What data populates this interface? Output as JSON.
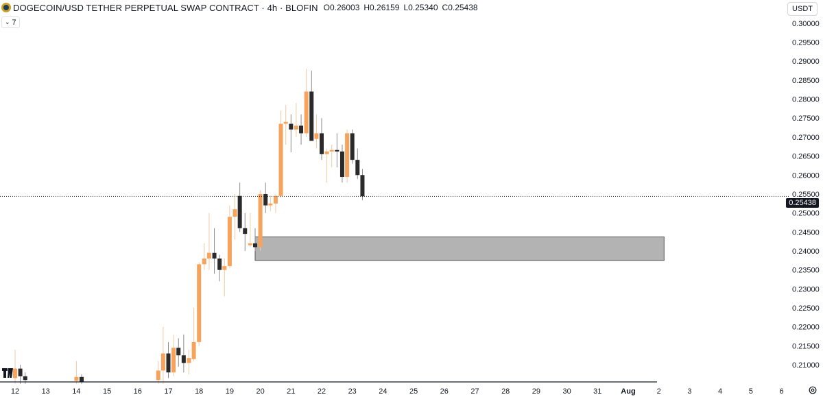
{
  "header": {
    "symbol_title": "DOGECOIN/USD TETHER PERPETUAL SWAP CONTRACT · 4h · BLOFIN",
    "ohlc": [
      {
        "label": "O",
        "value": "0.26003"
      },
      {
        "label": "H",
        "value": "0.26159"
      },
      {
        "label": "L",
        "value": "0.25340"
      },
      {
        "label": "C",
        "value": "0.25438"
      }
    ],
    "indicator_count": "7",
    "currency": "USDT"
  },
  "colors": {
    "up": "#f7a35c",
    "down": "#2a2a2a",
    "zone_fill": "#b3b3b3",
    "zone_stroke": "#555555",
    "axis_text": "#131722"
  },
  "current_price_label": "0.25438",
  "chart_data": {
    "type": "candlestick",
    "ylim": [
      0.2055,
      0.3025
    ],
    "y_ticks": [
      "0.30000",
      "0.29500",
      "0.29000",
      "0.28500",
      "0.28000",
      "0.27500",
      "0.27000",
      "0.26500",
      "0.26000",
      "0.25500",
      "0.25000",
      "0.24500",
      "0.24000",
      "0.23500",
      "0.23000",
      "0.22500",
      "0.22000",
      "0.21500",
      "0.21000"
    ],
    "y_tick_values": [
      0.3,
      0.295,
      0.29,
      0.285,
      0.28,
      0.275,
      0.27,
      0.265,
      0.26,
      0.255,
      0.25,
      0.245,
      0.24,
      0.235,
      0.23,
      0.225,
      0.22,
      0.215,
      0.21
    ],
    "x_ticks": [
      "12",
      "13",
      "14",
      "15",
      "16",
      "17",
      "18",
      "19",
      "20",
      "21",
      "22",
      "23",
      "24",
      "25",
      "26",
      "27",
      "28",
      "29",
      "30",
      "31",
      "Aug",
      "2",
      "3",
      "4",
      "5",
      "6"
    ],
    "x_tick_days": [
      12,
      13,
      14,
      15,
      16,
      17,
      18,
      19,
      20,
      21,
      22,
      23,
      24,
      25,
      26,
      27,
      28,
      29,
      30,
      31,
      32,
      33,
      34,
      35,
      36,
      37
    ],
    "current_price": 0.25438,
    "zone": {
      "day_start": 19.83,
      "day_end": 33.17,
      "top": 0.2437,
      "bottom": 0.2375
    },
    "candles": [
      {
        "t": 12.0,
        "o": 0.2065,
        "h": 0.214,
        "l": 0.205,
        "c": 0.209
      },
      {
        "t": 12.17,
        "o": 0.209,
        "h": 0.21,
        "l": 0.205,
        "c": 0.207
      },
      {
        "t": 12.33,
        "o": 0.207,
        "h": 0.208,
        "l": 0.205,
        "c": 0.206
      },
      {
        "t": 14.0,
        "o": 0.2058,
        "h": 0.211,
        "l": 0.205,
        "c": 0.2068
      },
      {
        "t": 14.17,
        "o": 0.2068,
        "h": 0.2075,
        "l": 0.205,
        "c": 0.2055
      },
      {
        "t": 16.67,
        "o": 0.206,
        "h": 0.211,
        "l": 0.205,
        "c": 0.2085
      },
      {
        "t": 16.83,
        "o": 0.2085,
        "h": 0.22,
        "l": 0.205,
        "c": 0.213
      },
      {
        "t": 17.0,
        "o": 0.213,
        "h": 0.216,
        "l": 0.2065,
        "c": 0.208
      },
      {
        "t": 17.17,
        "o": 0.208,
        "h": 0.218,
        "l": 0.207,
        "c": 0.2145
      },
      {
        "t": 17.33,
        "o": 0.2145,
        "h": 0.217,
        "l": 0.2095,
        "c": 0.2125
      },
      {
        "t": 17.5,
        "o": 0.2125,
        "h": 0.218,
        "l": 0.208,
        "c": 0.2105
      },
      {
        "t": 17.67,
        "o": 0.2105,
        "h": 0.214,
        "l": 0.2075,
        "c": 0.2118
      },
      {
        "t": 17.83,
        "o": 0.2115,
        "h": 0.225,
        "l": 0.211,
        "c": 0.216
      },
      {
        "t": 18.0,
        "o": 0.216,
        "h": 0.237,
        "l": 0.215,
        "c": 0.2365
      },
      {
        "t": 18.17,
        "o": 0.2365,
        "h": 0.242,
        "l": 0.235,
        "c": 0.238
      },
      {
        "t": 18.33,
        "o": 0.238,
        "h": 0.25,
        "l": 0.235,
        "c": 0.2395
      },
      {
        "t": 18.5,
        "o": 0.2395,
        "h": 0.246,
        "l": 0.234,
        "c": 0.238
      },
      {
        "t": 18.67,
        "o": 0.238,
        "h": 0.239,
        "l": 0.232,
        "c": 0.235
      },
      {
        "t": 18.83,
        "o": 0.235,
        "h": 0.238,
        "l": 0.228,
        "c": 0.236
      },
      {
        "t": 19.0,
        "o": 0.236,
        "h": 0.252,
        "l": 0.2355,
        "c": 0.249
      },
      {
        "t": 19.17,
        "o": 0.249,
        "h": 0.255,
        "l": 0.243,
        "c": 0.251
      },
      {
        "t": 19.33,
        "o": 0.2545,
        "h": 0.258,
        "l": 0.245,
        "c": 0.246
      },
      {
        "t": 19.5,
        "o": 0.246,
        "h": 0.25,
        "l": 0.24,
        "c": 0.2445
      },
      {
        "t": 19.67,
        "o": 0.2415,
        "h": 0.25,
        "l": 0.241,
        "c": 0.242
      },
      {
        "t": 19.83,
        "o": 0.242,
        "h": 0.246,
        "l": 0.24,
        "c": 0.241
      },
      {
        "t": 20.0,
        "o": 0.241,
        "h": 0.256,
        "l": 0.24,
        "c": 0.255
      },
      {
        "t": 20.17,
        "o": 0.255,
        "h": 0.258,
        "l": 0.25,
        "c": 0.252
      },
      {
        "t": 20.33,
        "o": 0.252,
        "h": 0.2545,
        "l": 0.2505,
        "c": 0.2525
      },
      {
        "t": 20.5,
        "o": 0.2525,
        "h": 0.255,
        "l": 0.25,
        "c": 0.2545
      },
      {
        "t": 20.67,
        "o": 0.2545,
        "h": 0.277,
        "l": 0.254,
        "c": 0.2735
      },
      {
        "t": 20.83,
        "o": 0.2735,
        "h": 0.2785,
        "l": 0.268,
        "c": 0.274
      },
      {
        "t": 21.0,
        "o": 0.2735,
        "h": 0.276,
        "l": 0.266,
        "c": 0.272
      },
      {
        "t": 21.17,
        "o": 0.272,
        "h": 0.279,
        "l": 0.27,
        "c": 0.273
      },
      {
        "t": 21.33,
        "o": 0.273,
        "h": 0.276,
        "l": 0.268,
        "c": 0.271
      },
      {
        "t": 21.5,
        "o": 0.271,
        "h": 0.288,
        "l": 0.27,
        "c": 0.282
      },
      {
        "t": 21.67,
        "o": 0.282,
        "h": 0.2875,
        "l": 0.269,
        "c": 0.269
      },
      {
        "t": 21.83,
        "o": 0.2695,
        "h": 0.276,
        "l": 0.267,
        "c": 0.271
      },
      {
        "t": 22.0,
        "o": 0.271,
        "h": 0.275,
        "l": 0.264,
        "c": 0.2655
      },
      {
        "t": 22.17,
        "o": 0.2655,
        "h": 0.267,
        "l": 0.258,
        "c": 0.2662
      },
      {
        "t": 22.33,
        "o": 0.2662,
        "h": 0.268,
        "l": 0.262,
        "c": 0.2666
      },
      {
        "t": 22.5,
        "o": 0.2666,
        "h": 0.271,
        "l": 0.262,
        "c": 0.2662
      },
      {
        "t": 22.67,
        "o": 0.2662,
        "h": 0.268,
        "l": 0.258,
        "c": 0.2595
      },
      {
        "t": 22.83,
        "o": 0.2595,
        "h": 0.272,
        "l": 0.258,
        "c": 0.271
      },
      {
        "t": 23.0,
        "o": 0.271,
        "h": 0.272,
        "l": 0.263,
        "c": 0.264
      },
      {
        "t": 23.17,
        "o": 0.264,
        "h": 0.267,
        "l": 0.259,
        "c": 0.26
      },
      {
        "t": 23.33,
        "o": 0.26,
        "h": 0.2616,
        "l": 0.2534,
        "c": 0.2544
      }
    ]
  }
}
